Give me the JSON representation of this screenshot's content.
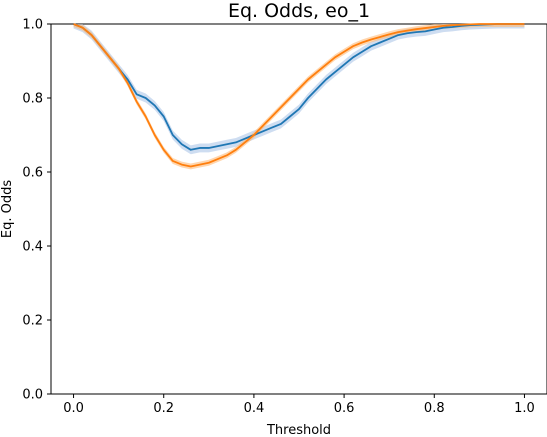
{
  "chart_data": {
    "type": "line",
    "title": "Eq. Odds, eo_1",
    "xlabel": "Threshold",
    "ylabel": "Eq. Odds",
    "xlim": [
      -0.05,
      1.05
    ],
    "ylim": [
      0.0,
      1.0
    ],
    "xticks": [
      0.0,
      0.2,
      0.4,
      0.6,
      0.8,
      1.0
    ],
    "yticks": [
      0.0,
      0.2,
      0.4,
      0.6,
      0.8,
      1.0
    ],
    "xtick_labels": [
      "0.0",
      "0.2",
      "0.4",
      "0.6",
      "0.8",
      "1.0"
    ],
    "ytick_labels": [
      "0.0",
      "0.2",
      "0.4",
      "0.6",
      "0.8",
      "1.0"
    ],
    "grid": false,
    "series": [
      {
        "color": "#1f77b4",
        "band_color": "#aec7e8",
        "x": [
          0.0,
          0.02,
          0.04,
          0.06,
          0.08,
          0.1,
          0.12,
          0.14,
          0.16,
          0.18,
          0.2,
          0.22,
          0.24,
          0.26,
          0.28,
          0.3,
          0.32,
          0.34,
          0.36,
          0.38,
          0.4,
          0.42,
          0.44,
          0.46,
          0.48,
          0.5,
          0.52,
          0.54,
          0.56,
          0.58,
          0.6,
          0.62,
          0.64,
          0.66,
          0.68,
          0.7,
          0.72,
          0.74,
          0.76,
          0.78,
          0.8,
          0.82,
          0.84,
          0.86,
          0.88,
          0.9,
          0.92,
          0.94,
          0.96,
          0.98,
          1.0
        ],
        "y": [
          1.0,
          0.99,
          0.97,
          0.94,
          0.91,
          0.88,
          0.85,
          0.81,
          0.8,
          0.78,
          0.75,
          0.7,
          0.675,
          0.66,
          0.665,
          0.665,
          0.67,
          0.675,
          0.68,
          0.69,
          0.7,
          0.71,
          0.72,
          0.73,
          0.75,
          0.77,
          0.8,
          0.825,
          0.85,
          0.87,
          0.89,
          0.91,
          0.925,
          0.94,
          0.95,
          0.96,
          0.97,
          0.975,
          0.978,
          0.98,
          0.985,
          0.99,
          0.992,
          0.995,
          0.997,
          0.998,
          0.999,
          1.0,
          1.0,
          1.0,
          1.0
        ],
        "band": 0.012
      },
      {
        "color": "#ff7f0e",
        "band_color": "#ffbb78",
        "x": [
          0.0,
          0.02,
          0.04,
          0.06,
          0.08,
          0.1,
          0.12,
          0.14,
          0.16,
          0.18,
          0.2,
          0.22,
          0.24,
          0.26,
          0.28,
          0.3,
          0.32,
          0.34,
          0.36,
          0.38,
          0.4,
          0.42,
          0.44,
          0.46,
          0.48,
          0.5,
          0.52,
          0.54,
          0.56,
          0.58,
          0.6,
          0.62,
          0.64,
          0.66,
          0.68,
          0.7,
          0.72,
          0.74,
          0.76,
          0.78,
          0.8,
          0.82,
          0.84,
          0.86,
          0.88,
          0.9,
          0.92,
          0.94,
          0.96,
          0.98,
          1.0
        ],
        "y": [
          1.0,
          0.99,
          0.97,
          0.94,
          0.91,
          0.88,
          0.84,
          0.79,
          0.75,
          0.7,
          0.66,
          0.63,
          0.62,
          0.615,
          0.62,
          0.625,
          0.635,
          0.645,
          0.66,
          0.68,
          0.7,
          0.725,
          0.75,
          0.775,
          0.8,
          0.825,
          0.85,
          0.87,
          0.89,
          0.91,
          0.925,
          0.94,
          0.95,
          0.958,
          0.965,
          0.972,
          0.978,
          0.982,
          0.986,
          0.989,
          0.992,
          0.995,
          0.997,
          0.998,
          0.999,
          1.0,
          1.0,
          1.0,
          1.0,
          1.0,
          1.0
        ],
        "band": 0.008
      }
    ]
  }
}
